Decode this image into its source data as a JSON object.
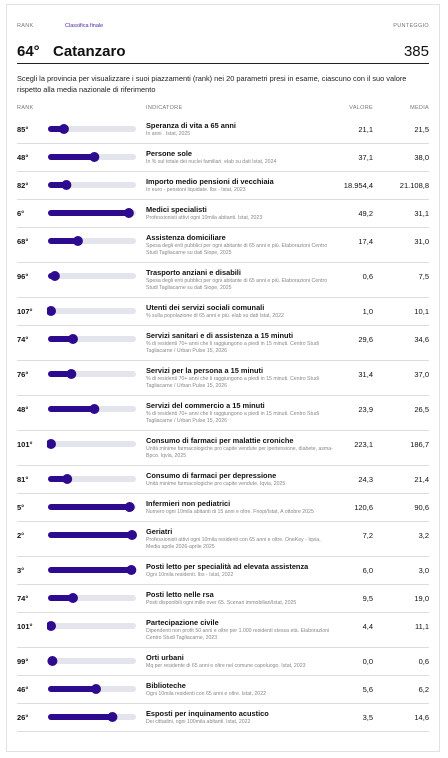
{
  "header": {
    "rank_label": "RANK",
    "tab": "Classifica finale",
    "score_label": "PUNTEGGIO",
    "rank": "64°",
    "province": "Catanzaro",
    "score": "385"
  },
  "intro": "Scegli la provincia per visualizzare i suoi piazzamenti (rank) nei 20 parametri presi in esame, ciascuno con il suo valore rispetto alla media nazionale di riferimento",
  "table": {
    "columns": [
      "RANK",
      "INDICATORE",
      "VALORE",
      "MEDIA"
    ],
    "rows": [
      [
        "85°",
        "Speranza di vita a 65 anni",
        "In anni . Istat, 2025",
        "21,1",
        "21,5"
      ],
      [
        "48°",
        "Persone sole",
        "In % sul totale dei nuclei familiari. elab su dati Istat, 2024",
        "37,1",
        "38,0"
      ],
      [
        "82°",
        "Importo medio pensioni di vecchiaia",
        "In euro - pensioni liquidate. Ibs - Istat, 2023",
        "18.954,4",
        "21.108,8"
      ],
      [
        "6°",
        "Medici specialisti",
        "Professionisti attivi ogni 10mila abitanti. Istat, 2023",
        "49,2",
        "31,1"
      ],
      [
        "68°",
        "Assistenza domiciliare",
        "Spesa degli enti pubblici per ogni abitante di 65 anni e più. Elaborazioni Centro Studi Tagliacarne su dati Siope, 2025",
        "17,4",
        "31,0"
      ],
      [
        "96°",
        "Trasporto anziani e disabili",
        "Spesa degli enti pubblici per ogni abitante di 65 anni e più. Elaborazioni Centro Studi Tagliacarne su dati Siope, 2025",
        "0,6",
        "7,5"
      ],
      [
        "107°",
        "Utenti dei servizi sociali comunali",
        "% sulla popolazione di 65 anni e più. elab su dati Istat, 2022",
        "1,0",
        "10,1"
      ],
      [
        "74°",
        "Servizi sanitari e di assistenza a 15 minuti",
        "% di residenti 70+ anni che li raggiungono a piedi in 15 minuti. Centro Studi Tagliacarne / Urban Pulse 15, 2026",
        "29,6",
        "34,6"
      ],
      [
        "76°",
        "Servizi per la persona a 15 minuti",
        "% di residenti 70+ anni che li raggiungono a piedi in 15 minuti. Centro Studi Tagliacarne / Urban Pulse 15, 2026",
        "31,4",
        "37,0"
      ],
      [
        "48°",
        "Servizi del commercio a 15 minuti",
        "% di residenti 70+ anni che li raggiungono a piedi in 15 minuti. Centro Studi Tagliacarne / Urban Pulse 15, 2026",
        "23,9",
        "26,5"
      ],
      [
        "101°",
        "Consumo di farmaci per malattie croniche",
        "Unità minime farmacologiche pro capite vendute per ipertensione, diabete, asma-Bpco. Iqvia, 2025",
        "223,1",
        "186,7"
      ],
      [
        "81°",
        "Consumo di farmaci per depressione",
        "Unità minime farmacologiche pro capite vendute. Iqvia, 2025",
        "24,3",
        "21,4"
      ],
      [
        "5°",
        "Infermieri non pediatrici",
        "Numero ogni 10mila abitanti di 15 anni e oltre. Fnopi/Istat, A ottobre 2025",
        "120,6",
        "90,6"
      ],
      [
        "2°",
        "Geriatri",
        "Professionisti attivi ogni 10mila residenti con 65 anni e oltre. OneKey - Iqvia, Media aprile 2026-aprile 2025",
        "7,2",
        "3,2"
      ],
      [
        "3°",
        "Posti letto per specialità ad elevata assistenza",
        "Ogni 10mila residenti. Ibs - Istat, 2022",
        "6,0",
        "3,0"
      ],
      [
        "74°",
        "Posti letto nelle rsa",
        "Posti disponibili ogni mille over 65. Scenari immobiliari/Istat, 2025",
        "9,5",
        "19,0"
      ],
      [
        "101°",
        "Partecipazione civile",
        "Dipendenti non profit 50 anni e oltre per 1.000 residenti stessa età. Elaborazioni Centro Studi Tagliacarne, 2023",
        "4,4",
        "11,1"
      ],
      [
        "99°",
        "Orti urbani",
        "Mq per residente di 65 anni e oltre nel comune capoluogo. Istat, 2023",
        "0,0",
        "0,6"
      ],
      [
        "46°",
        "Biblioteche",
        "Ogni 10mila residenti con 65 anni e oltre. Istat, 2022",
        "5,6",
        "6,2"
      ],
      [
        "26°",
        "Esposti per inquinamento acustico",
        "Dei cittadini, ogni 100mila abitanti. Istat, 2022",
        "3,5",
        "14,6"
      ]
    ]
  }
}
